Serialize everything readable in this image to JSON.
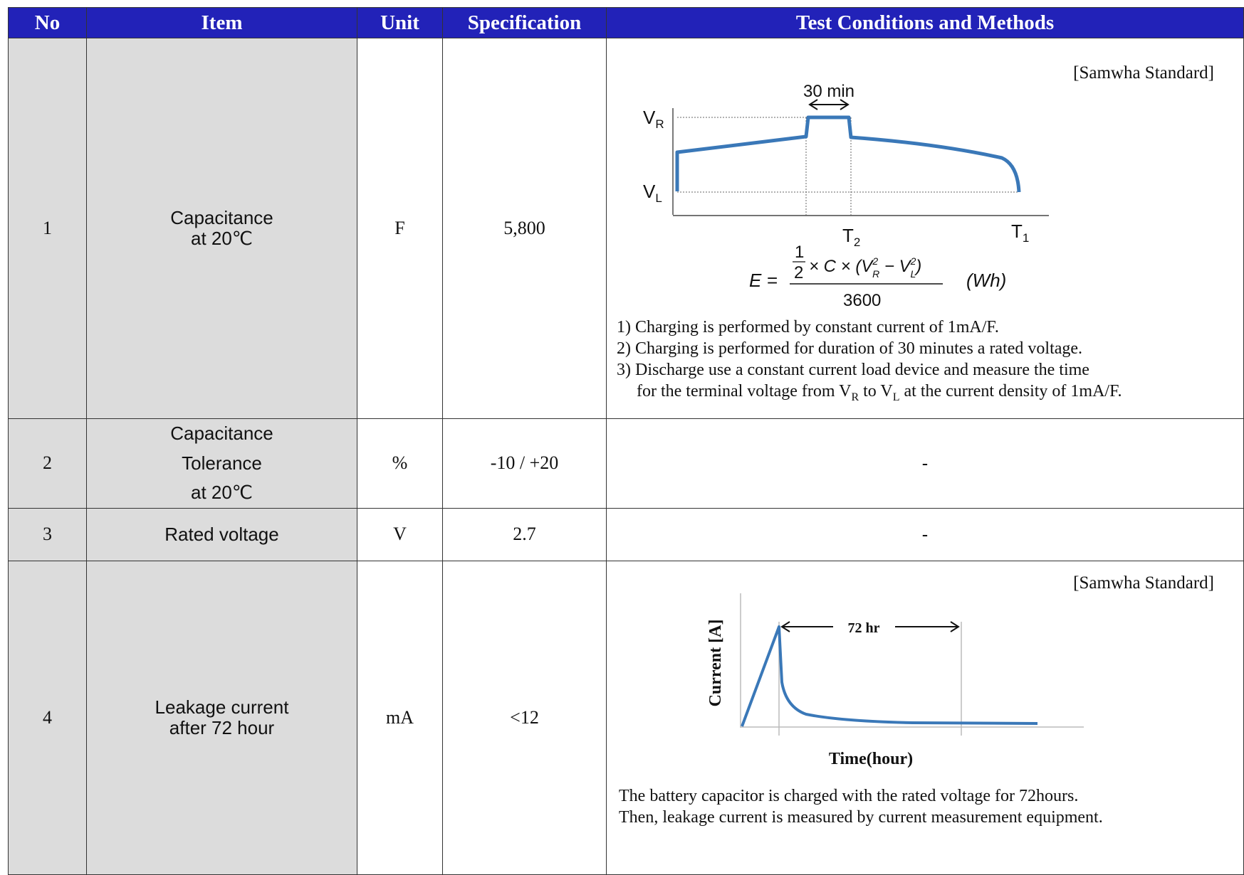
{
  "headers": {
    "no": "No",
    "item": "Item",
    "unit": "Unit",
    "specification": "Specification",
    "methods": "Test Conditions and Methods"
  },
  "rows": [
    {
      "no": "1",
      "item_lines": [
        "Capacitance",
        "at 20℃"
      ],
      "unit": "F",
      "spec": "5,800",
      "standard": "[Samwha Standard]",
      "chart": {
        "duration_label": "30 min",
        "vr_label": "V",
        "vr_sub": "R",
        "vl_label": "V",
        "vl_sub": "L",
        "t2_label": "T",
        "t2_sub": "2",
        "t1_label": "T",
        "t1_sub": "1",
        "line_color": "#3a78b8"
      },
      "formula": {
        "lhs": "E =",
        "num_half_top": "1",
        "num_half_bottom": "2",
        "num_rest": "× C × (V",
        "vr_sub": "R",
        "vr_sup": "2",
        "minus": " − V",
        "vl_sub": "L",
        "vl_sup": "2",
        "close": ")",
        "den": "3600",
        "unit": "(Wh)"
      },
      "notes": [
        "1) Charging is performed by constant current of 1mA/F.",
        "2) Charging is performed for duration of 30 minutes a rated voltage.",
        "3) Discharge use a constant current load device and  measure the time"
      ],
      "note4": {
        "pre": "for the terminal voltage from V",
        "sub1": "R",
        "mid": " to V",
        "sub2": "L",
        "post": " at the current density of 1mA/F."
      }
    },
    {
      "no": "2",
      "item_lines": [
        "Capacitance",
        "Tolerance",
        "at 20℃"
      ],
      "unit": "%",
      "spec": "-10 / +20",
      "method": "-"
    },
    {
      "no": "3",
      "item": "Rated voltage",
      "unit": "V",
      "spec": "2.7",
      "method": "-"
    },
    {
      "no": "4",
      "item_lines": [
        "Leakage current",
        "after 72 hour"
      ],
      "unit": "mA",
      "spec": "<12",
      "standard": "[Samwha Standard]",
      "chart": {
        "duration_label": "72 hr",
        "ylabel": "Current [A]",
        "xlabel": "Time(hour)",
        "line_color": "#3a78b8"
      },
      "notes": [
        "The battery capacitor is charged with the rated voltage for 72hours.",
        "Then, leakage current is measured by current measurement equipment."
      ]
    }
  ]
}
